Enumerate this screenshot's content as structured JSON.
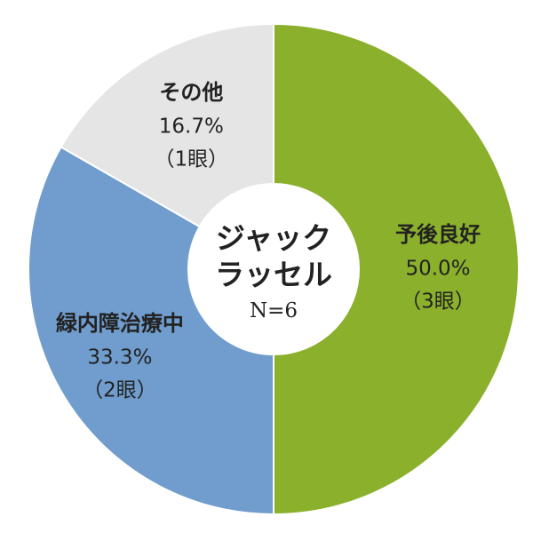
{
  "chart_data": {
    "type": "donut",
    "categories": [
      "予後良好",
      "緑内障治療中",
      "その他"
    ],
    "values": [
      50.0,
      33.3,
      16.7
    ],
    "value_labels": [
      "50.0%",
      "33.3%",
      "16.7%"
    ],
    "sublabels": [
      "（3眼）",
      "（2眼）",
      "（1眼）"
    ],
    "colors": [
      "#8bb02c",
      "#709dcd",
      "#e5e5e5"
    ],
    "center_title": [
      "ジャック",
      "ラッセル"
    ],
    "center_subtitle": "N=6"
  }
}
